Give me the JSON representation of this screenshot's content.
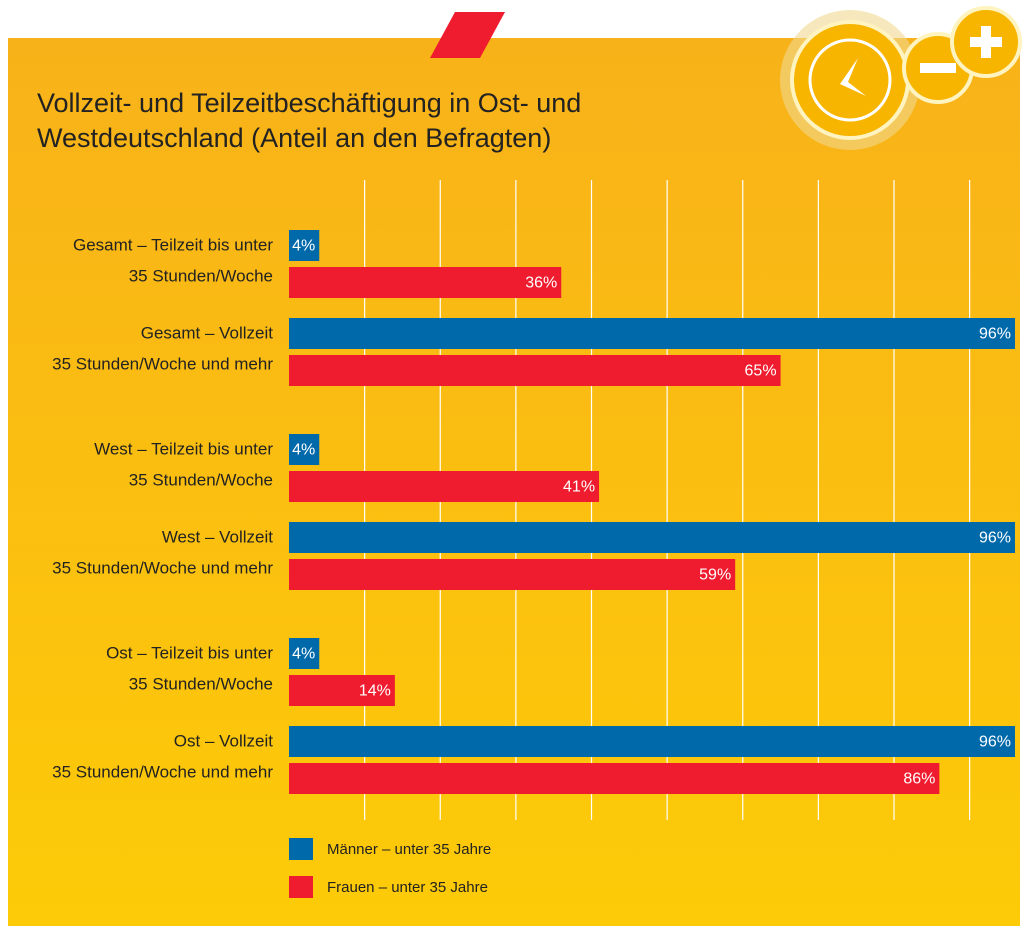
{
  "chart_data": {
    "type": "barh",
    "title": "Vollzeit- und Teilzeitbeschäftigung in Ost- und Westdeutschland (Anteil an den Befragten)",
    "categories": [
      [
        "Gesamt – Teilzeit bis unter",
        "35 Stunden/Woche"
      ],
      [
        "Gesamt – Vollzeit",
        "35 Stunden/Woche und mehr"
      ],
      [
        "West – Teilzeit bis unter",
        "35 Stunden/Woche"
      ],
      [
        "West – Vollzeit",
        "35 Stunden/Woche und mehr"
      ],
      [
        "Ost – Teilzeit bis unter",
        "35 Stunden/Woche"
      ],
      [
        "Ost – Vollzeit",
        "35 Stunden/Woche und mehr"
      ]
    ],
    "series": [
      {
        "name": "Männer – unter 35 Jahre",
        "color": "#0069aa",
        "values": [
          4,
          96,
          4,
          96,
          4,
          96
        ],
        "value_labels": [
          "4%",
          "96%",
          "4%",
          "96%",
          "4%",
          "96%"
        ]
      },
      {
        "name": "Frauen – unter 35 Jahre",
        "color": "#ee1c2e",
        "values": [
          36,
          65,
          41,
          59,
          14,
          86
        ],
        "value_labels": [
          "36%",
          "65%",
          "41%",
          "59%",
          "14%",
          "86%"
        ]
      }
    ],
    "xlim": [
      0,
      96
    ],
    "xticks": [
      10,
      20,
      30,
      40,
      50,
      60,
      70,
      80,
      90
    ],
    "grid": true,
    "legend": "bottom"
  }
}
